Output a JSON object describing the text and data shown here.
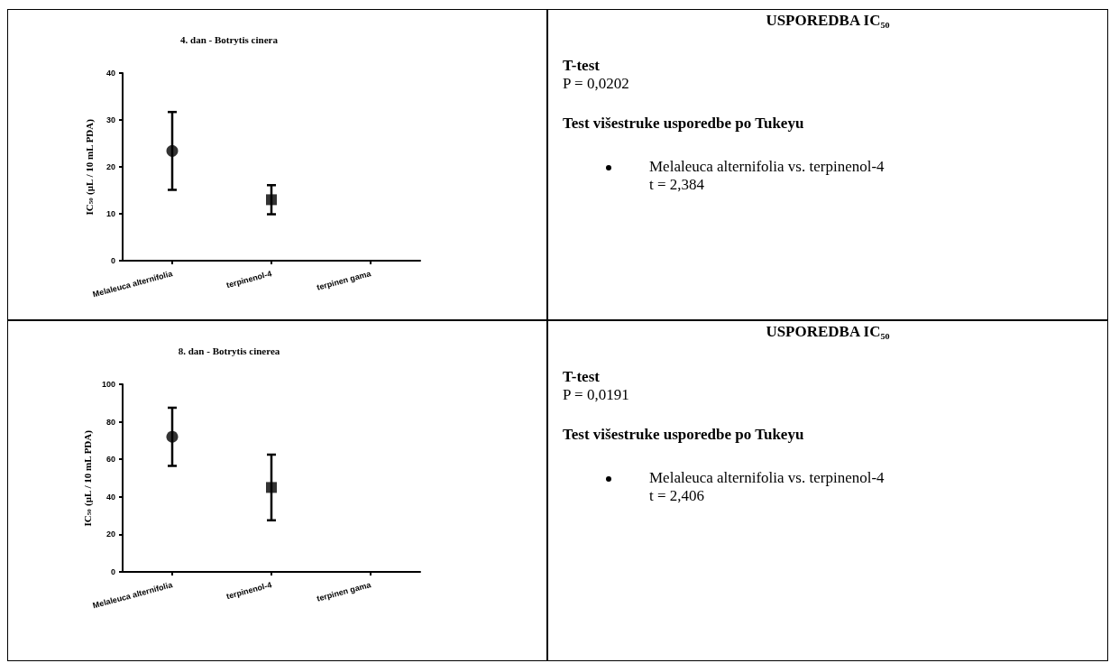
{
  "chart_data": [
    {
      "type": "scatter",
      "title": "4. dan - Botrytis cinera",
      "ylabel": "IC$_{50}$ (μL / 10 mL PDA)",
      "categories": [
        "Melaleuca alternifolia",
        "terpinenol-4",
        "terpinen gama"
      ],
      "ylim": [
        0,
        40
      ],
      "yticks": [
        0,
        10,
        20,
        30,
        40
      ],
      "series": [
        {
          "marker": "circle",
          "color": "#000000",
          "x": [
            "Melaleuca alternifolia"
          ],
          "values": [
            23.4
          ],
          "errors": [
            8.3
          ]
        },
        {
          "marker": "square",
          "color": "#000000",
          "x": [
            "terpinenol-4"
          ],
          "values": [
            13
          ],
          "errors": [
            3.1
          ]
        }
      ]
    },
    {
      "type": "other",
      "title": "USPOREDBA IC₅₀",
      "annotations": [
        "T-test",
        "P = 0,0202",
        "Test višestruke usporedbe po Tukeyu",
        "Melaleuca alternifolia vs. terpinenol-4",
        "t = 2,384"
      ]
    },
    {
      "type": "scatter",
      "title": "8. dan - Botrytis cinerea",
      "ylabel": "IC$_{50}$ (μL / 10 mL PDA)",
      "categories": [
        "Melaleuca alternifolia",
        "terpinenol-4",
        "terpinen gama"
      ],
      "ylim": [
        0,
        100
      ],
      "yticks": [
        0,
        20,
        40,
        60,
        80,
        100
      ],
      "series": [
        {
          "marker": "circle",
          "color": "#000000",
          "x": [
            "Melaleuca alternifolia"
          ],
          "values": [
            72
          ],
          "errors": [
            15.5
          ]
        },
        {
          "marker": "square",
          "color": "#000000",
          "x": [
            "terpinenol-4"
          ],
          "values": [
            45
          ],
          "errors": [
            17.5
          ]
        }
      ]
    },
    {
      "type": "other",
      "title": "USPOREDBA IC₅₀",
      "annotations": [
        "T-test",
        "P = 0,0191",
        "Test višestruke usporedbe po Tukeyu",
        "Melaleuca alternifolia vs. terpinenol-4",
        "t = 2,406"
      ]
    }
  ]
}
